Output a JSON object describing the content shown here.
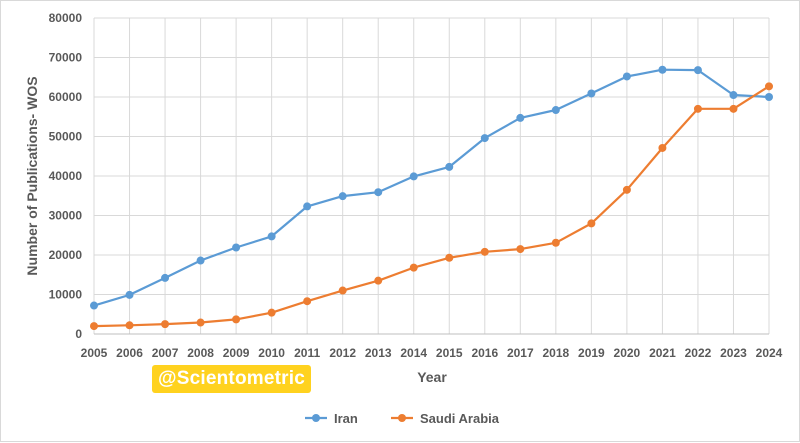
{
  "chart_data": {
    "type": "line",
    "title": "",
    "xlabel": "Year",
    "ylabel": "Number of Publications- WOS",
    "ylim": [
      0,
      80000
    ],
    "yticks": [
      0,
      10000,
      20000,
      30000,
      40000,
      50000,
      60000,
      70000,
      80000
    ],
    "categories": [
      "2005",
      "2006",
      "2007",
      "2008",
      "2009",
      "2010",
      "2011",
      "2012",
      "2013",
      "2014",
      "2015",
      "2016",
      "2017",
      "2018",
      "2019",
      "2020",
      "2021",
      "2022",
      "2023",
      "2024"
    ],
    "grid": "horizontal and vertical",
    "legend_position": "bottom",
    "series": [
      {
        "name": "Iran",
        "color": "#5b9bd5",
        "values": [
          7200,
          9900,
          14200,
          18600,
          21900,
          24700,
          32300,
          34900,
          35900,
          39900,
          42300,
          49600,
          54700,
          56700,
          60900,
          65200,
          66900,
          66800,
          60500,
          60000
        ]
      },
      {
        "name": "Saudi Arabia",
        "color": "#ed7d31",
        "values": [
          2000,
          2200,
          2500,
          2900,
          3700,
          5400,
          8300,
          11000,
          13500,
          16800,
          19300,
          20800,
          21500,
          23100,
          28000,
          36500,
          47100,
          57000,
          57000,
          62700
        ]
      }
    ]
  },
  "watermark": "@Scientometric"
}
